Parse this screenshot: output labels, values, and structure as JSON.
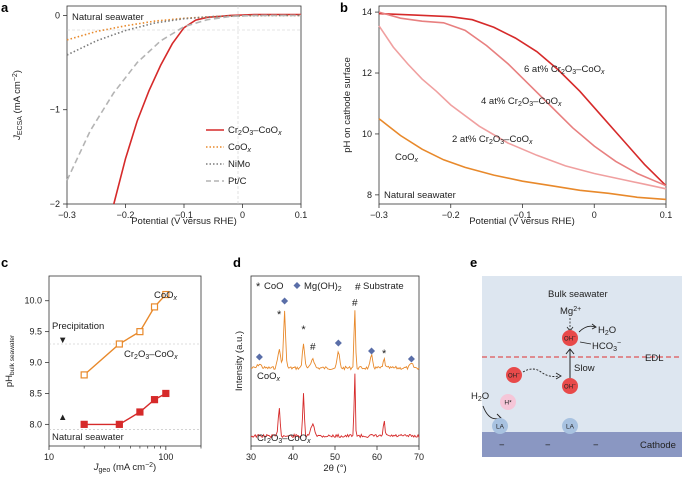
{
  "panel_labels": [
    "a",
    "b",
    "c",
    "d",
    "e"
  ],
  "colors": {
    "cr2o3": "#d62a2a",
    "coox": "#e8892b",
    "nimo": "#7b7b7b",
    "ptc": "#b4b4b4",
    "pink_mid": "#e88080",
    "pink_light": "#f0a0a0",
    "bulk_bg": "#dde6f0",
    "cathode": "#8a97c2",
    "oh": "#e84a4a",
    "la": "#a8c2e0",
    "hstar": "#f5c6d8",
    "diamond": "#5a6ea8"
  },
  "chart_data": [
    {
      "panel": "a",
      "type": "line",
      "annotation": "Natural seawater",
      "xlabel": "Potential (V versus RHE)",
      "ylabel_main": "J",
      "ylabel_sub": "ECSA",
      "ylabel_unit": " (mA cm",
      "ylabel_sup": "−2",
      "ylabel_end": ")",
      "xlim": [
        -0.3,
        0.1
      ],
      "ylim": [
        -2,
        0.1
      ],
      "xticks": [
        -0.3,
        -0.2,
        -0.1,
        0,
        0.1
      ],
      "xtick_labels": [
        "−0.3",
        "−0.2",
        "−0.1",
        "0",
        "0.1"
      ],
      "yticks": [
        0,
        -1,
        -2
      ],
      "ytick_labels": [
        "0",
        "−1",
        "−2"
      ],
      "legend": [
        "Cr2O3–CoOx",
        "CoOx",
        "NiMo",
        "Pt/C"
      ],
      "series": [
        {
          "name": "Cr2O3–CoOx",
          "style": "solid",
          "x": [
            -0.22,
            -0.2,
            -0.18,
            -0.16,
            -0.14,
            -0.12,
            -0.1,
            -0.08,
            -0.06,
            -0.04,
            -0.02,
            0,
            0.02,
            0.05,
            0.1
          ],
          "y": [
            -2.0,
            -1.52,
            -1.12,
            -0.8,
            -0.53,
            -0.3,
            -0.13,
            -0.05,
            -0.02,
            -0.01,
            0,
            0.005,
            0.01,
            0.01,
            0.01
          ]
        },
        {
          "name": "CoOx",
          "style": "dot",
          "x": [
            -0.3,
            -0.25,
            -0.2,
            -0.15,
            -0.1,
            -0.05,
            0,
            0.05,
            0.1
          ],
          "y": [
            -0.26,
            -0.17,
            -0.11,
            -0.06,
            -0.03,
            -0.012,
            -0.004,
            0,
            0
          ]
        },
        {
          "name": "NiMo",
          "style": "dot",
          "x": [
            -0.3,
            -0.25,
            -0.2,
            -0.15,
            -0.1,
            -0.05,
            0,
            0.05,
            0.1
          ],
          "y": [
            -0.42,
            -0.27,
            -0.16,
            -0.08,
            -0.035,
            -0.012,
            -0.003,
            0,
            0
          ]
        },
        {
          "name": "Pt/C",
          "style": "dash",
          "x": [
            -0.3,
            -0.26,
            -0.22,
            -0.18,
            -0.14,
            -0.1,
            -0.06,
            -0.02,
            0.02,
            0.06,
            0.1
          ],
          "y": [
            -1.75,
            -1.22,
            -0.82,
            -0.5,
            -0.27,
            -0.12,
            -0.045,
            -0.01,
            0,
            0,
            0
          ]
        }
      ]
    },
    {
      "panel": "b",
      "type": "line",
      "annotation": "Natural seawater",
      "xlabel": "Potential (V versus RHE)",
      "ylabel": "pH on cathode surface",
      "xlim": [
        -0.3,
        0.1
      ],
      "ylim": [
        7.7,
        14.2
      ],
      "xticks": [
        -0.3,
        -0.2,
        -0.1,
        0,
        0.1
      ],
      "xtick_labels": [
        "−0.3",
        "−0.2",
        "−0.1",
        "0",
        "0.1"
      ],
      "yticks": [
        8,
        10,
        12,
        14
      ],
      "ytick_labels": [
        "8",
        "10",
        "12",
        "14"
      ],
      "series": [
        {
          "name": "6 at% Cr2O3–CoOx",
          "x": [
            -0.3,
            -0.25,
            -0.2,
            -0.17,
            -0.14,
            -0.11,
            -0.08,
            -0.05,
            -0.02,
            0.01,
            0.04,
            0.07,
            0.1
          ],
          "y": [
            13.95,
            13.9,
            13.85,
            13.75,
            13.5,
            13.15,
            12.7,
            12.1,
            11.4,
            10.6,
            9.8,
            9.0,
            8.3
          ]
        },
        {
          "name": "4 at% Cr2O3–CoOx",
          "x": [
            -0.3,
            -0.27,
            -0.24,
            -0.21,
            -0.18,
            -0.15,
            -0.12,
            -0.09,
            -0.06,
            -0.03,
            0,
            0.03,
            0.06,
            0.1
          ],
          "y": [
            14.0,
            13.8,
            13.7,
            13.65,
            13.4,
            12.9,
            12.3,
            11.6,
            10.9,
            10.2,
            9.6,
            9.1,
            8.7,
            8.3
          ]
        },
        {
          "name": "2 at% Cr2O3–CoOx",
          "x": [
            -0.3,
            -0.28,
            -0.26,
            -0.24,
            -0.22,
            -0.2,
            -0.16,
            -0.12,
            -0.08,
            -0.04,
            0,
            0.04,
            0.07,
            0.1
          ],
          "y": [
            13.55,
            12.85,
            12.3,
            11.8,
            11.4,
            10.95,
            10.25,
            9.7,
            9.3,
            8.95,
            8.7,
            8.5,
            8.35,
            8.2
          ]
        },
        {
          "name": "CoOx",
          "x": [
            -0.3,
            -0.27,
            -0.24,
            -0.21,
            -0.18,
            -0.14,
            -0.1,
            -0.06,
            -0.02,
            0.02,
            0.06,
            0.1
          ],
          "y": [
            10.5,
            9.95,
            9.5,
            9.15,
            8.9,
            8.65,
            8.45,
            8.3,
            8.15,
            8.05,
            7.92,
            7.85
          ]
        }
      ]
    },
    {
      "panel": "c",
      "type": "line",
      "xlabel_main": "J",
      "xlabel_sub": "geo",
      "xlabel_unit": " (mA cm",
      "xlabel_sup": "−2",
      "xlabel_end": ")",
      "ylabel_main": "pH",
      "ylabel_sub": "bulk seawater",
      "xscale": "log",
      "xlim": [
        10,
        200
      ],
      "ylim": [
        7.65,
        10.4
      ],
      "xticks": [
        10,
        100
      ],
      "xtick_labels": [
        "10",
        "100"
      ],
      "yticks": [
        8.0,
        8.5,
        9.0,
        9.5,
        10.0
      ],
      "ytick_labels": [
        "8.0",
        "8.5",
        "9.0",
        "9.5",
        "10.0"
      ],
      "annotations": [
        "Precipitation",
        "Natural seawater"
      ],
      "hlines": [
        9.3,
        7.92
      ],
      "series": [
        {
          "name": "CoOx",
          "label": "CoOx",
          "x": [
            20,
            40,
            60,
            80,
            100
          ],
          "y": [
            8.8,
            9.3,
            9.5,
            9.9,
            10.1
          ]
        },
        {
          "name": "Cr2O3–CoOx",
          "label": "Cr2O3–CoOx",
          "x": [
            20,
            40,
            60,
            80,
            100
          ],
          "y": [
            8.0,
            8.0,
            8.2,
            8.4,
            8.5
          ]
        }
      ]
    },
    {
      "panel": "d",
      "type": "line",
      "xlabel": "2θ (°)",
      "ylabel": "Intensity (a.u.)",
      "xlim": [
        30,
        70
      ],
      "xticks": [
        30,
        40,
        50,
        60,
        70
      ],
      "xtick_labels": [
        "30",
        "40",
        "50",
        "60",
        "70"
      ],
      "legend": [
        "CoO",
        "Mg(OH)2",
        "Substrate"
      ],
      "series": [
        {
          "name": "CoOx",
          "label": "CoOx"
        },
        {
          "name": "Cr2O3–CoOx",
          "label": "Cr2O3–CoOx"
        }
      ],
      "markers": {
        "coo_x": [
          36.7,
          42.5,
          61.7
        ],
        "mgoh2_x": [
          32.0,
          38.0,
          50.8,
          58.7,
          68.2
        ],
        "substrate_x": [
          44.7,
          54.7
        ]
      }
    }
  ],
  "panel_e": {
    "bulk_label": "Bulk seawater",
    "mg_label": "Mg",
    "mg_sup": "2+",
    "h2o_top": "H2O",
    "hco3_label": "HCO",
    "hco3_sub": "3",
    "hco3_sup": "−",
    "edl_label": "EDL",
    "slow_label": "Slow",
    "oh_label": "OH",
    "oh_sup": "−",
    "hstar_label": "H*",
    "h2o_left": "H2O",
    "la_label": "LA",
    "cathode_label": "Cathode",
    "minus": "−"
  }
}
